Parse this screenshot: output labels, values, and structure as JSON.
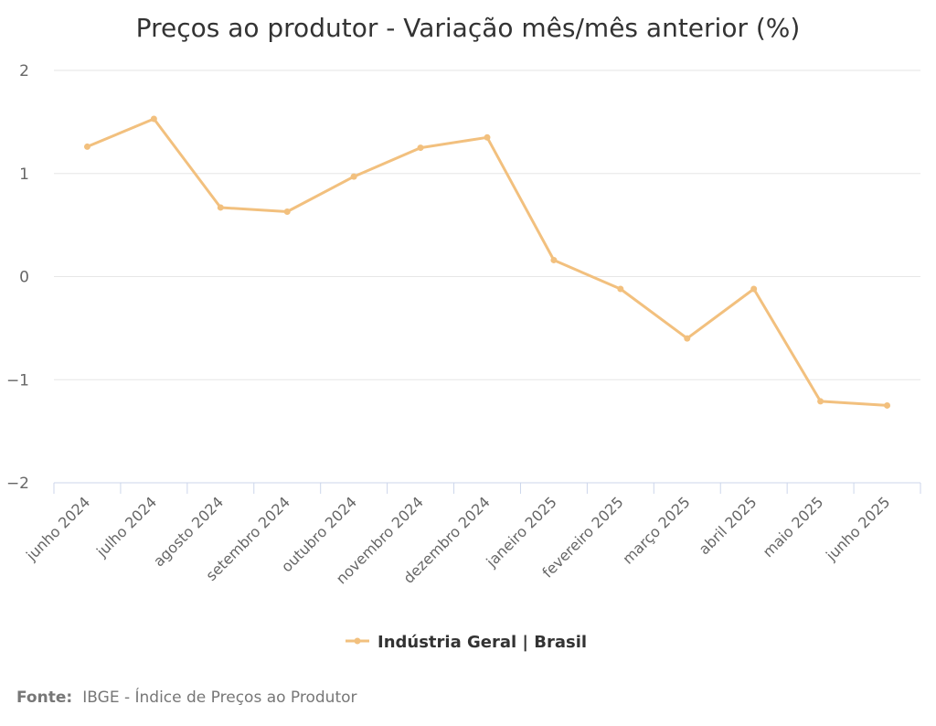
{
  "chart_data": {
    "type": "line",
    "title": "Preços ao produtor - Variação mês/mês anterior (%)",
    "xlabel": "",
    "ylabel": "",
    "categories": [
      "junho 2024",
      "julho 2024",
      "agosto 2024",
      "setembro 2024",
      "outubro 2024",
      "novembro 2024",
      "dezembro 2024",
      "janeiro 2025",
      "fevereiro 2025",
      "março 2025",
      "abril 2025",
      "maio 2025",
      "junho 2025"
    ],
    "series": [
      {
        "name": "Indústria Geral | Brasil",
        "color": "#f2c07e",
        "values": [
          1.26,
          1.53,
          0.67,
          0.63,
          0.97,
          1.25,
          1.35,
          0.16,
          -0.12,
          -0.6,
          -0.12,
          -1.21,
          -1.25
        ]
      }
    ],
    "yticks": [
      2,
      1,
      0,
      -1,
      -2
    ],
    "ytick_labels": [
      "2",
      "1",
      "0",
      "−1",
      "−2"
    ],
    "ylim": [
      -2,
      2
    ],
    "grid": true,
    "legend_position": "bottom-center"
  },
  "source": {
    "label": "Fonte:",
    "text": "IBGE - Índice de Preços ao Produtor"
  },
  "colors": {
    "grid": "#e6e6e6",
    "axis": "#ccd6eb",
    "text": "#333333",
    "muted": "#666666"
  }
}
